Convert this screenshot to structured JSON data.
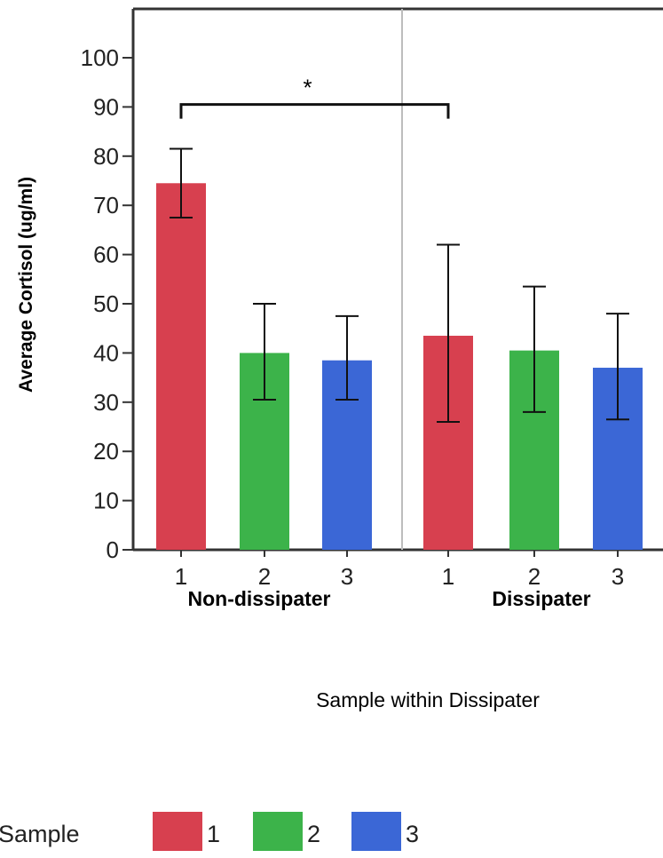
{
  "chart_data": {
    "type": "bar",
    "ylabel": "Average Cortisol (ug/ml)",
    "xlabel": "Sample within Dissipater",
    "ylim": [
      0,
      110
    ],
    "yticks": [
      0,
      10,
      20,
      30,
      40,
      50,
      60,
      70,
      80,
      90,
      100
    ],
    "grid": false,
    "groups": [
      {
        "label": "Non-dissipater",
        "bars": [
          {
            "category": "1",
            "value": 74.5,
            "err_low": 67.5,
            "err_high": 81.5
          },
          {
            "category": "2",
            "value": 40,
            "err_low": 30.5,
            "err_high": 50
          },
          {
            "category": "3",
            "value": 38.5,
            "err_low": 30.5,
            "err_high": 47.5
          }
        ]
      },
      {
        "label": "Dissipater",
        "bars": [
          {
            "category": "1",
            "value": 43.5,
            "err_low": 26,
            "err_high": 62
          },
          {
            "category": "2",
            "value": 40.5,
            "err_low": 28,
            "err_high": 53.5
          },
          {
            "category": "3",
            "value": 37,
            "err_low": 26.5,
            "err_high": 48
          }
        ]
      }
    ],
    "legend": {
      "title": "Sample",
      "position": "bottom-left",
      "entries": [
        {
          "label": "1",
          "color": "#d7404f"
        },
        {
          "label": "2",
          "color": "#3cb34a"
        },
        {
          "label": "3",
          "color": "#3b67d6"
        }
      ]
    },
    "annotation": {
      "text": "*",
      "level": 90.5,
      "from": "Non-dissipater 1",
      "to": "Dissipater 1"
    }
  }
}
